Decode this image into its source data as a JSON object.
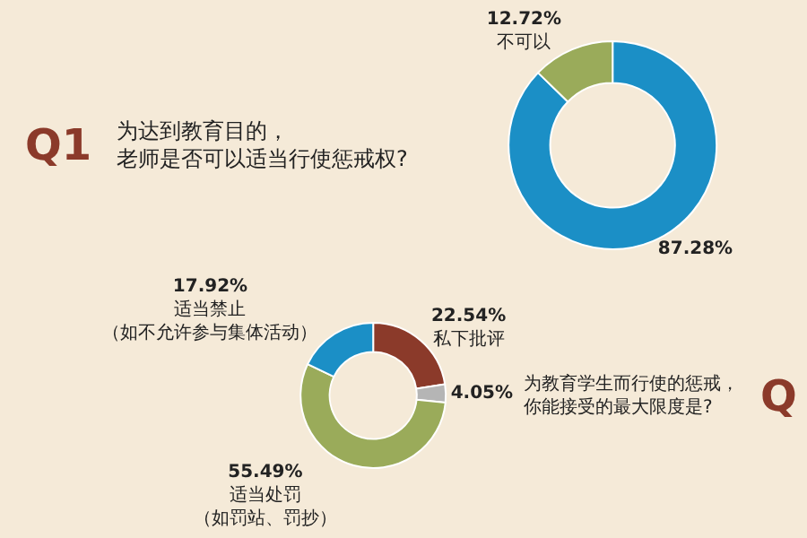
{
  "chart_data": [
    {
      "type": "donut",
      "title": "为达到教育目的，老师是否可以适当行使惩戒权?",
      "annotations": [
        "Q1"
      ],
      "categories": [
        null,
        "不可以"
      ],
      "values": [
        87.28,
        12.72
      ],
      "colors": [
        "#1b8fc6",
        "#9aab5a"
      ],
      "value_labels": [
        "87.28%",
        "12.72%"
      ]
    },
    {
      "type": "donut",
      "title": "为教育学生而行使的惩戒，你能接受的最大限度是?",
      "annotations": [
        "Q"
      ],
      "categories": [
        "私下批评",
        null,
        "适当处罚（如罚站、罚抄）",
        "适当禁止（如不允许参与集体活动）"
      ],
      "values": [
        22.54,
        4.05,
        55.49,
        17.92
      ],
      "colors": [
        "#8b3a2a",
        "#b5b5b5",
        "#9aab5a",
        "#1b8fc6"
      ],
      "value_labels": [
        "22.54%",
        "4.05%",
        "55.49%",
        "17.92%"
      ]
    }
  ]
}
